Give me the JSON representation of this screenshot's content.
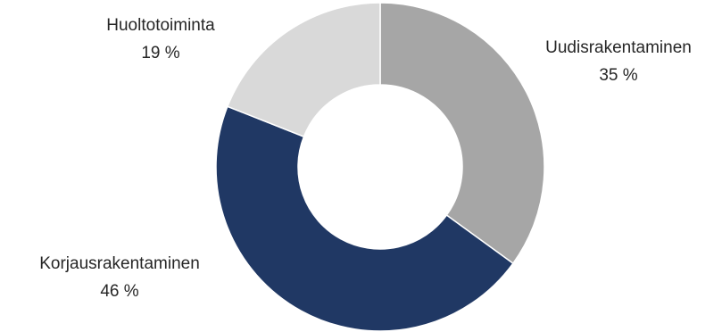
{
  "chart_data": {
    "type": "pie",
    "variant": "donut",
    "title": "",
    "slices": [
      {
        "label": "Uudisrakentaminen",
        "value": 35,
        "value_text": "35 %",
        "color": "#a6a6a6"
      },
      {
        "label": "Korjausrakentaminen",
        "value": 46,
        "value_text": "46 %",
        "color": "#203864"
      },
      {
        "label": "Huoltotoiminta",
        "value": 19,
        "value_text": "19 %",
        "color": "#d9d9d9"
      }
    ],
    "legend": "none"
  }
}
